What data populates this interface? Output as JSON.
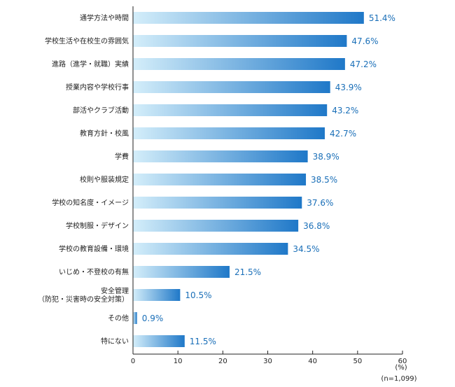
{
  "chart_data": {
    "type": "bar",
    "orientation": "horizontal",
    "categories": [
      [
        "通学方法や時間"
      ],
      [
        "学校生活や在校生の雰囲気"
      ],
      [
        "進路（進学・就職）実績"
      ],
      [
        "授業内容や学校行事"
      ],
      [
        "部活やクラブ活動"
      ],
      [
        "教育方針・校風"
      ],
      [
        "学費"
      ],
      [
        "校則や服装規定"
      ],
      [
        "学校の知名度・イメージ"
      ],
      [
        "学校制服・デザイン"
      ],
      [
        "学校の教育設備・環境"
      ],
      [
        "いじめ・不登校の有無"
      ],
      [
        "安全管理",
        "（防犯・災害時の安全対策）"
      ],
      [
        "その他"
      ],
      [
        "特にない"
      ]
    ],
    "values": [
      51.4,
      47.6,
      47.2,
      43.9,
      43.2,
      42.7,
      38.9,
      38.5,
      37.6,
      36.8,
      34.5,
      21.5,
      10.5,
      0.9,
      11.5
    ],
    "value_labels": [
      "51.4%",
      "47.6%",
      "47.2%",
      "43.9%",
      "43.2%",
      "42.7%",
      "38.9%",
      "38.5%",
      "37.6%",
      "36.8%",
      "34.5%",
      "21.5%",
      "10.5%",
      "0.9%",
      "11.5%"
    ],
    "xlim": [
      0,
      60
    ],
    "xticks": [
      "0",
      "10",
      "20",
      "30",
      "40",
      "50",
      "60"
    ],
    "x_unit_label": "(%)",
    "sample_note": "(n=1,099)",
    "colors": {
      "bar_start": "#d4eefa",
      "bar_end": "#1f78c8",
      "value_text": "#1a6fb8",
      "axis": "#222222"
    }
  }
}
